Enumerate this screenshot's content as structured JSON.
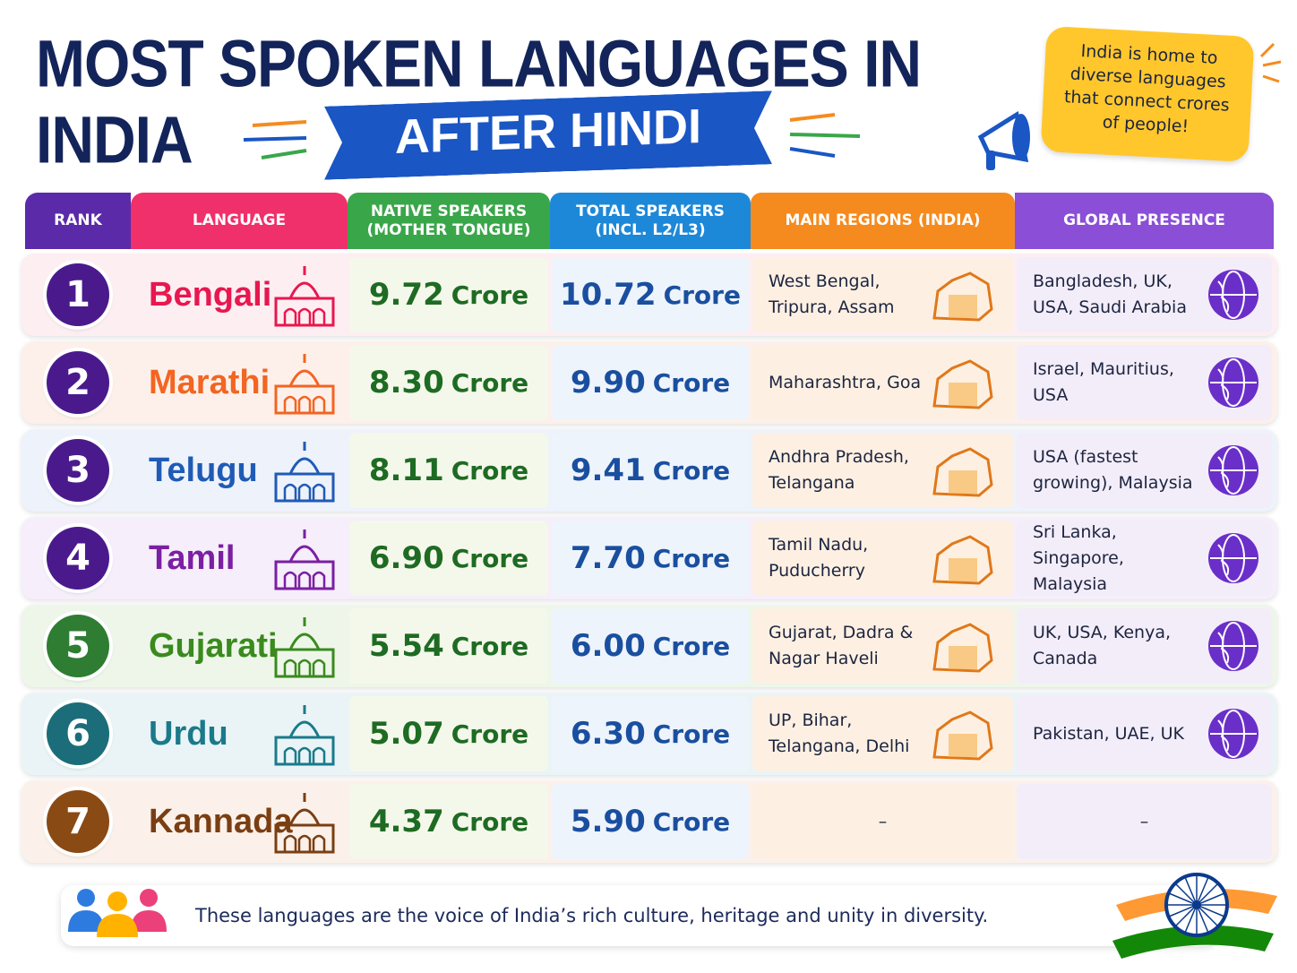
{
  "header": {
    "title": "MOST SPOKEN LANGUAGES IN INDIA",
    "subtitle": "AFTER HINDI",
    "callout": "India is home to diverse languages that connect crores of people!"
  },
  "table": {
    "columns": [
      "RANK",
      "LANGUAGE",
      "NATIVE SPEAKERS\n(MOTHER TONGUE)",
      "TOTAL SPEAKERS\n(INCL. L2/L3)",
      "MAIN REGIONS (INDIA)",
      "GLOBAL PRESENCE"
    ],
    "rows": [
      {
        "rank": "1",
        "language": "Bengali",
        "native": {
          "number": "9.72",
          "unit": "Crore"
        },
        "total": {
          "number": "10.72",
          "unit": "Crore"
        },
        "regions": "West Bengal, Tripura, Assam",
        "global": "Bangladesh, UK, USA, Saudi Arabia"
      },
      {
        "rank": "2",
        "language": "Marathi",
        "native": {
          "number": "8.30",
          "unit": "Crore"
        },
        "total": {
          "number": "9.90",
          "unit": "Crore"
        },
        "regions": "Maharashtra, Goa",
        "global": "Israel, Mauritius, USA"
      },
      {
        "rank": "3",
        "language": "Telugu",
        "native": {
          "number": "8.11",
          "unit": "Crore"
        },
        "total": {
          "number": "9.41",
          "unit": "Crore"
        },
        "regions": "Andhra Pradesh, Telangana",
        "global": "USA (fastest growing), Malaysia"
      },
      {
        "rank": "4",
        "language": "Tamil",
        "native": {
          "number": "6.90",
          "unit": "Crore"
        },
        "total": {
          "number": "7.70",
          "unit": "Crore"
        },
        "regions": "Tamil Nadu, Puducherry",
        "global": "Sri Lanka, Singapore, Malaysia"
      },
      {
        "rank": "5",
        "language": "Gujarati",
        "native": {
          "number": "5.54",
          "unit": "Crore"
        },
        "total": {
          "number": "6.00",
          "unit": "Crore"
        },
        "regions": "Gujarat, Dadra & Nagar Haveli",
        "global": "UK, USA, Kenya, Canada"
      },
      {
        "rank": "6",
        "language": "Urdu",
        "native": {
          "number": "5.07",
          "unit": "Crore"
        },
        "total": {
          "number": "6.30",
          "unit": "Crore"
        },
        "regions": "UP, Bihar, Telangana, Delhi",
        "global": "Pakistan, UAE, UK"
      },
      {
        "rank": "7",
        "language": "Kannada",
        "native": {
          "number": "4.37",
          "unit": "Crore"
        },
        "total": {
          "number": "5.90",
          "unit": "Crore"
        },
        "regions": "–",
        "global": "–"
      }
    ]
  },
  "footer": {
    "text": "These languages are the voice of India’s rich culture, heritage and unity in diversity."
  }
}
